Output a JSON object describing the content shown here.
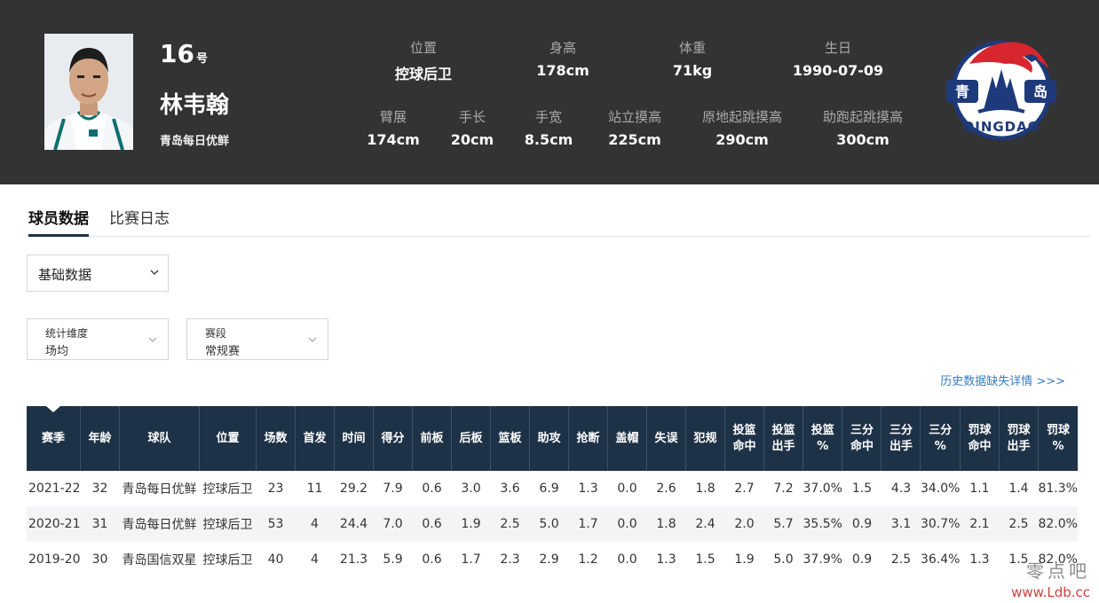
{
  "player": {
    "number": "16",
    "number_suffix": "号",
    "name": "林韦翰",
    "team": "青岛每日优鲜"
  },
  "stats_row1": [
    {
      "label": "位置",
      "value": "控球后卫"
    },
    {
      "label": "身高",
      "value": "178cm"
    },
    {
      "label": "体重",
      "value": "71kg"
    },
    {
      "label": "生日",
      "value": "1990-07-09"
    }
  ],
  "stats_row2": [
    {
      "label": "臂展",
      "value": "174cm"
    },
    {
      "label": "手长",
      "value": "20cm"
    },
    {
      "label": "手宽",
      "value": "8.5cm"
    },
    {
      "label": "站立摸高",
      "value": "225cm"
    },
    {
      "label": "原地起跳摸高",
      "value": "290cm"
    },
    {
      "label": "助跑起跳摸高",
      "value": "300cm"
    }
  ],
  "logo": {
    "left_text": "青",
    "right_text": "岛",
    "bottom_text": "QINGDAO"
  },
  "tabs": [
    "球员数据",
    "比赛日志"
  ],
  "data_type_select": "基础数据",
  "filters": [
    {
      "label": "统计维度",
      "value": "场均"
    },
    {
      "label": "赛段",
      "value": "常规赛"
    }
  ],
  "history_link": "历史数据缺失详情 >>>",
  "table": {
    "headers": [
      "赛季",
      "年龄",
      "球队",
      "位置",
      "场数",
      "首发",
      "时间",
      "得分",
      "前板",
      "后板",
      "篮板",
      "助攻",
      "抢断",
      "盖帽",
      "失误",
      "犯规",
      "投篮\n命中",
      "投篮\n出手",
      "投篮\n%",
      "三分\n命中",
      "三分\n出手",
      "三分\n%",
      "罚球\n命中",
      "罚球\n出手",
      "罚球\n%"
    ],
    "rows": [
      [
        "2021-22",
        "32",
        "青岛每日优鲜",
        "控球后卫",
        "23",
        "11",
        "29.2",
        "7.9",
        "0.6",
        "3.0",
        "3.6",
        "6.9",
        "1.3",
        "0.0",
        "2.6",
        "1.8",
        "2.7",
        "7.2",
        "37.0%",
        "1.5",
        "4.3",
        "34.0%",
        "1.1",
        "1.4",
        "81.3%"
      ],
      [
        "2020-21",
        "31",
        "青岛每日优鲜",
        "控球后卫",
        "53",
        "4",
        "24.4",
        "7.0",
        "0.6",
        "1.9",
        "2.5",
        "5.0",
        "1.7",
        "0.0",
        "1.8",
        "2.4",
        "2.0",
        "5.7",
        "35.5%",
        "0.9",
        "3.1",
        "30.7%",
        "2.1",
        "2.5",
        "82.0%"
      ],
      [
        "2019-20",
        "30",
        "青岛国信双星",
        "控球后卫",
        "40",
        "4",
        "21.3",
        "5.9",
        "0.6",
        "1.7",
        "2.3",
        "2.9",
        "1.2",
        "0.0",
        "1.3",
        "1.5",
        "1.9",
        "5.0",
        "37.9%",
        "0.9",
        "2.5",
        "36.4%",
        "1.3",
        "1.5",
        "82.0%"
      ]
    ]
  },
  "watermark": {
    "line1": "零点吧",
    "line2": "www.Ldb.cc"
  },
  "colors": {
    "header_bg": "#333333",
    "table_header_bg": "#1e3247",
    "link": "#3a7bbf",
    "logo_red": "#d7262e",
    "logo_navy": "#1e3a7a"
  }
}
